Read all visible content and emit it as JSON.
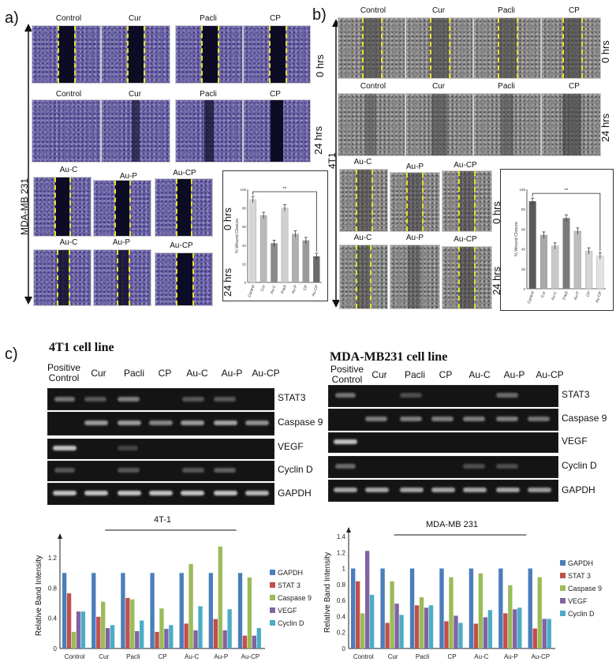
{
  "panels": {
    "a": {
      "letter": "a)",
      "cell_line": "MDA-MB 231",
      "row_labels": [
        "Control",
        "Cur",
        "Pacli",
        "CP"
      ],
      "row_labels2": [
        "Au-C",
        "Au-P",
        "Au-CP"
      ],
      "time_0": "0 hrs",
      "time_24": "24 hrs"
    },
    "b": {
      "letter": "b)",
      "cell_line": "4T1",
      "row_labels": [
        "Control",
        "Cur",
        "Pacli",
        "CP"
      ],
      "row_labels2": [
        "Au-C",
        "Au-P",
        "Au-CP"
      ],
      "time_0": "0 hrs",
      "time_24": "24 hrs"
    },
    "c": {
      "letter": "c)"
    }
  },
  "gels": {
    "left": {
      "title": "4T1 cell line",
      "lanes": [
        "Positive Control",
        "Cur",
        "Pacli",
        "CP",
        "Au-C",
        "Au-P",
        "Au-CP"
      ],
      "genes": [
        "STAT3",
        "Caspase 9",
        "VEGF",
        "Cyclin D",
        "GAPDH"
      ]
    },
    "right": {
      "title": "MDA-MB231 cell line",
      "lanes": [
        "Positive Control",
        "Cur",
        "Pacli",
        "CP",
        "Au-C",
        "Au-P",
        "Au-CP"
      ],
      "genes": [
        "STAT3",
        "Caspase 9",
        "VEGF",
        "Cyclin D",
        "GAPDH"
      ]
    }
  },
  "colors": {
    "GAPDH": "#4a7ebb",
    "STAT3": "#c0504d",
    "Caspase 9": "#9bbb59",
    "VEGF": "#8064a2",
    "Cyclin D": "#4bacc6"
  },
  "chart_data": [
    {
      "type": "bar",
      "title": "",
      "categories": [
        "Control",
        "Cur",
        "Au-C",
        "Pacli",
        "Au-P",
        "CP",
        "Au-CP"
      ],
      "values": [
        89,
        72,
        42,
        80,
        52,
        45,
        28
      ],
      "ylabel": "% Wound Closure",
      "ylim": [
        0,
        100
      ],
      "yticks": [
        "0",
        "20",
        "40",
        "60",
        "80",
        "100"
      ],
      "annotation": "**",
      "side_label": [
        "0 hrs",
        "24 hrs"
      ],
      "colors": [
        "#d6d6d6",
        "#b8b8b8",
        "#8a8a8a",
        "#cfcfcf",
        "#b0b0b0",
        "#9a9a9a",
        "#6a6a6a"
      ]
    },
    {
      "type": "bar",
      "title": "",
      "categories": [
        "Control",
        "Cur",
        "Au-C",
        "Pacli",
        "Au-P",
        "CP",
        "Au-CP"
      ],
      "values": [
        88,
        54,
        43,
        71,
        58,
        38,
        33
      ],
      "ylabel": "% Wound Closure",
      "ylim": [
        0,
        100
      ],
      "yticks": [
        "0",
        "20",
        "40",
        "60",
        "80",
        "100"
      ],
      "annotation": "**",
      "side_label": [
        "0 hrs",
        "24 hrs"
      ],
      "colors": [
        "#5a5a5a",
        "#a8a8a8",
        "#c8c8c8",
        "#7a7a7a",
        "#bdbdbd",
        "#d5d5d5",
        "#e2e2e2"
      ]
    },
    {
      "type": "bar",
      "title": "4T-1",
      "ylabel": "Relative Band Intensity",
      "ylim": [
        0,
        1.4
      ],
      "yticks": [
        "0",
        "0.4",
        "0.8",
        "1.2"
      ],
      "ytick_values": [
        0,
        0.4,
        0.8,
        1.2
      ],
      "categories": [
        "Control",
        "Cur",
        "Pacli",
        "CP",
        "Au-C",
        "Au-P",
        "Au-CP"
      ],
      "series": [
        {
          "name": "GAPDH",
          "values": [
            1.0,
            1.0,
            1.0,
            1.0,
            1.0,
            1.0,
            1.0
          ]
        },
        {
          "name": "STAT 3",
          "values": [
            0.73,
            0.42,
            0.67,
            0.22,
            0.33,
            0.39,
            0.17
          ]
        },
        {
          "name": "Caspase 9",
          "values": [
            0.22,
            0.62,
            0.65,
            0.53,
            1.12,
            1.35,
            0.94
          ]
        },
        {
          "name": "VEGF",
          "values": [
            0.49,
            0.27,
            0.23,
            0.26,
            0.24,
            0.24,
            0.17
          ]
        },
        {
          "name": "Cyclin D",
          "values": [
            0.49,
            0.31,
            0.37,
            0.31,
            0.56,
            0.52,
            0.27
          ]
        }
      ]
    },
    {
      "type": "bar",
      "title": "MDA-MB 231",
      "ylabel": "Relative Band Intensity",
      "ylim": [
        0,
        1.4
      ],
      "yticks": [
        "0",
        "0.2",
        "0.4",
        "0.6",
        "0.8",
        "1",
        "1.2",
        "1.4"
      ],
      "ytick_values": [
        0,
        0.2,
        0.4,
        0.6,
        0.8,
        1.0,
        1.2,
        1.4
      ],
      "categories": [
        "Control",
        "Cur",
        "Pacli",
        "CP",
        "Au-C",
        "Au-P",
        "Au-CP"
      ],
      "series": [
        {
          "name": "GAPDH",
          "values": [
            1.0,
            1.0,
            1.0,
            1.0,
            1.0,
            1.0,
            1.0
          ]
        },
        {
          "name": "STAT 3",
          "values": [
            0.84,
            0.32,
            0.54,
            0.34,
            0.31,
            0.44,
            0.25
          ]
        },
        {
          "name": "Caspase 9",
          "values": [
            0.44,
            0.84,
            0.64,
            0.89,
            0.94,
            0.79,
            0.89
          ]
        },
        {
          "name": "VEGF",
          "values": [
            1.22,
            0.56,
            0.51,
            0.41,
            0.39,
            0.49,
            0.37
          ]
        },
        {
          "name": "Cyclin D",
          "values": [
            0.67,
            0.42,
            0.54,
            0.32,
            0.48,
            0.51,
            0.37
          ]
        }
      ]
    }
  ]
}
